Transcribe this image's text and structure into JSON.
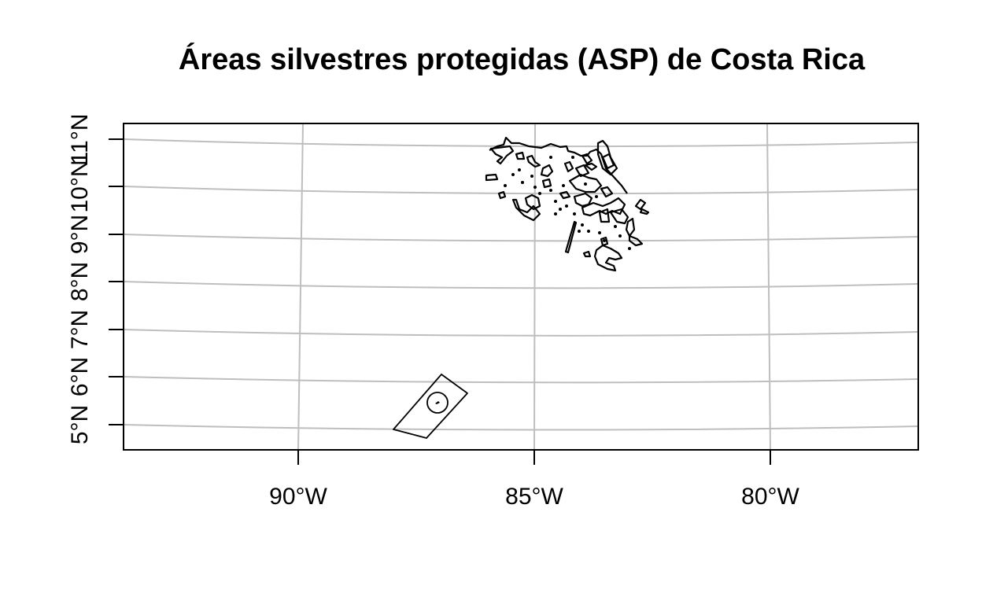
{
  "title": "Áreas silvestres protegidas (ASP) de Costa Rica",
  "axes": {
    "x_ticks": [
      "90°W",
      "85°W",
      "80°W"
    ],
    "y_ticks": [
      "5°N",
      "6°N",
      "7°N",
      "8°N",
      "9°N",
      "10°N",
      "11°N"
    ]
  },
  "map": {
    "layer": "ASP",
    "graticule": true,
    "graticule_color": "#bebebe",
    "outline_color": "#000000"
  }
}
